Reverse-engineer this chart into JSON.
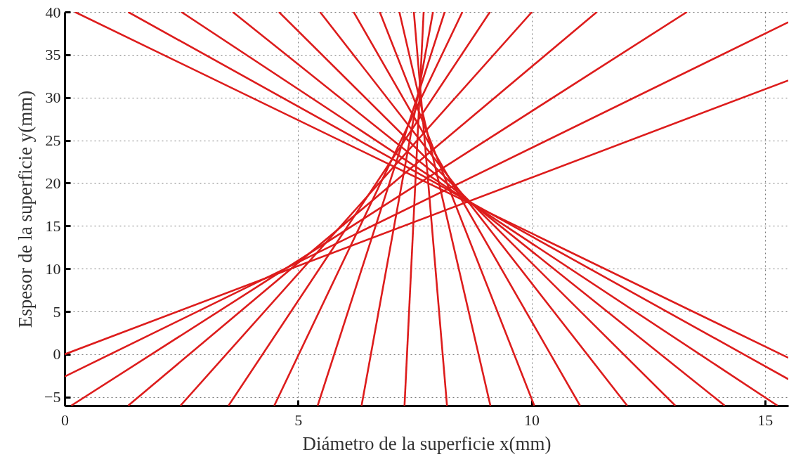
{
  "chart_data": {
    "type": "line",
    "xlabel": "Diámetro de la superficie x(mm)",
    "ylabel": "Espesor de la superficie y(mm)",
    "xlim": [
      0,
      15.5
    ],
    "ylim": [
      -6,
      40
    ],
    "xticks": [
      0,
      5,
      10,
      15
    ],
    "yticks": [
      {
        "value": -5,
        "label": "−5"
      },
      0,
      5,
      10,
      15,
      20,
      25,
      30,
      35,
      40
    ],
    "grid": true,
    "series": [
      {
        "color": "#dd1c1c",
        "x": [
          0,
          15.5
        ],
        "values": [
          0,
          32.0
        ]
      },
      {
        "color": "#dd1c1c",
        "x": [
          0,
          15.5
        ],
        "values": [
          -2.6,
          38.8
        ]
      },
      {
        "color": "#dd1c1c",
        "x": [
          0.14,
          13.33
        ],
        "values": [
          -6,
          40
        ]
      },
      {
        "color": "#dd1c1c",
        "x": [
          1.36,
          11.4
        ],
        "values": [
          -6,
          40
        ]
      },
      {
        "color": "#dd1c1c",
        "x": [
          2.48,
          10.01
        ],
        "values": [
          -6,
          40
        ]
      },
      {
        "color": "#dd1c1c",
        "x": [
          3.51,
          9.11
        ],
        "values": [
          -6,
          40
        ]
      },
      {
        "color": "#dd1c1c",
        "x": [
          4.49,
          8.52
        ],
        "values": [
          -6,
          40
        ]
      },
      {
        "color": "#dd1c1c",
        "x": [
          5.42,
          8.14
        ],
        "values": [
          -6,
          40
        ]
      },
      {
        "color": "#dd1c1c",
        "x": [
          6.36,
          7.89
        ],
        "values": [
          -6,
          40
        ]
      },
      {
        "color": "#dd1c1c",
        "x": [
          7.28,
          7.69
        ],
        "values": [
          -6,
          40
        ]
      },
      {
        "color": "#dd1c1c",
        "x": [
          8.19,
          7.48
        ],
        "values": [
          -6,
          40
        ]
      },
      {
        "color": "#dd1c1c",
        "x": [
          9.12,
          7.17
        ],
        "values": [
          -6,
          40
        ]
      },
      {
        "color": "#dd1c1c",
        "x": [
          10.06,
          6.75
        ],
        "values": [
          -6,
          40
        ]
      },
      {
        "color": "#dd1c1c",
        "x": [
          11.04,
          6.19
        ],
        "values": [
          -6,
          40
        ]
      },
      {
        "color": "#dd1c1c",
        "x": [
          12.05,
          5.47
        ],
        "values": [
          -6,
          40
        ]
      },
      {
        "color": "#dd1c1c",
        "x": [
          13.08,
          4.59
        ],
        "values": [
          -6,
          40
        ]
      },
      {
        "color": "#dd1c1c",
        "x": [
          14.14,
          3.6
        ],
        "values": [
          -6,
          40
        ]
      },
      {
        "color": "#dd1c1c",
        "x": [
          15.27,
          2.5
        ],
        "values": [
          -6,
          40
        ]
      },
      {
        "color": "#dd1c1c",
        "x": [
          15.5,
          1.36
        ],
        "values": [
          -2.9,
          40
        ]
      },
      {
        "color": "#dd1c1c",
        "x": [
          15.5,
          0.22
        ],
        "values": [
          -0.4,
          40
        ]
      }
    ]
  }
}
